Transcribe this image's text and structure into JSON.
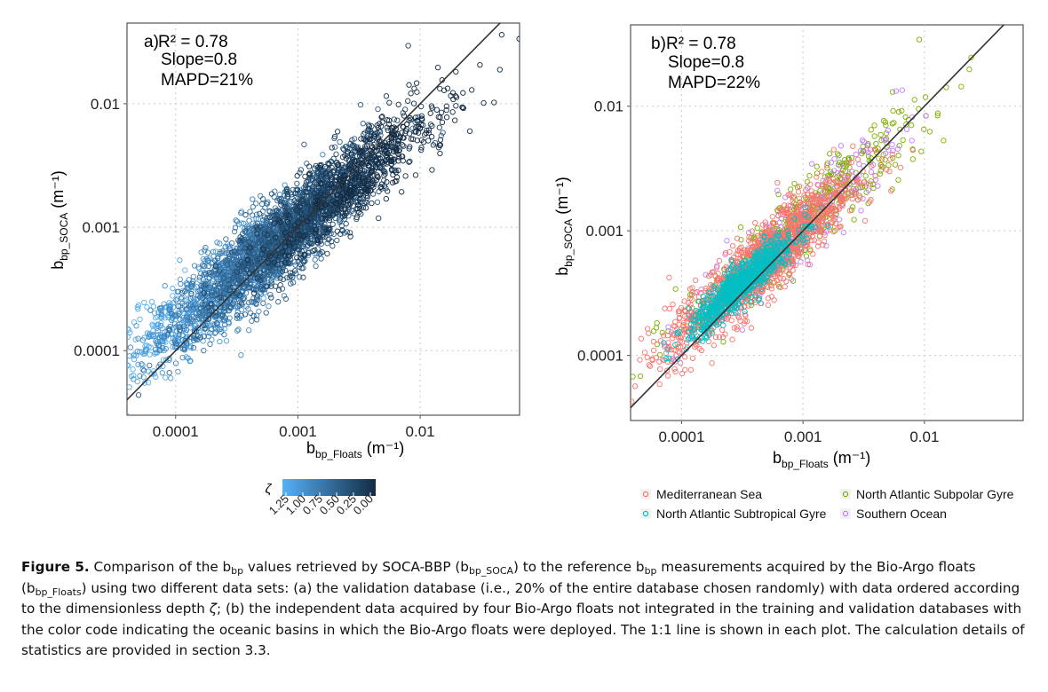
{
  "chart_data": [
    {
      "type": "scatter",
      "panel": "a",
      "annotation": {
        "panel_label": "a)",
        "r2": "R² = 0.78",
        "slope": "Slope=0.8",
        "mapd": "MAPD=21%"
      },
      "x_scale": "log10",
      "y_scale": "log10",
      "xlim": [
        4e-05,
        0.065
      ],
      "ylim": [
        3e-05,
        0.045
      ],
      "xticks": [
        "0.0001",
        "0.001",
        "0.01"
      ],
      "yticks": [
        "0.0001",
        "0.001",
        "0.01"
      ],
      "xlabel": {
        "base": "b",
        "sub": "bp_Floats",
        "unit": "(m⁻¹)"
      },
      "ylabel": {
        "base": "b",
        "sub": "bp_SOCA",
        "unit": "(m⁻¹)"
      },
      "grid": true,
      "reference_line": "1:1",
      "color_variable": {
        "symbol": "ζ",
        "ticks": [
          "1.25",
          "1.00",
          "0.75",
          "0.50",
          "0.25",
          "0.00"
        ],
        "low_color": "#56B1F7",
        "high_color": "#132B43"
      },
      "point_cloud": {
        "center_log10": -3.15,
        "spread_log10": 0.55,
        "scatter_log10": 0.17,
        "slope": 0.8,
        "n_points": 3800
      }
    },
    {
      "type": "scatter",
      "panel": "b",
      "annotation": {
        "panel_label": "b)",
        "r2": "R² = 0.78",
        "slope": "Slope=0.8",
        "mapd": "MAPD=22%"
      },
      "x_scale": "log10",
      "y_scale": "log10",
      "xlim": [
        3.8e-05,
        0.065
      ],
      "ylim": [
        3e-05,
        0.045
      ],
      "xticks": [
        "0.0001",
        "0.001",
        "0.01"
      ],
      "yticks": [
        "0.0001",
        "0.001",
        "0.01"
      ],
      "xlabel": {
        "base": "b",
        "sub": "bp_Floats",
        "unit": "(m⁻¹)"
      },
      "ylabel": {
        "base": "b",
        "sub": "bp_SOCA",
        "unit": "(m⁻¹)"
      },
      "grid": true,
      "reference_line": "1:1",
      "series": [
        {
          "name": "Mediterranean Sea",
          "color": "#F8766D",
          "center_log10": -3.35,
          "spread_log10": 0.38,
          "scatter_log10": 0.15,
          "n_points": 1300
        },
        {
          "name": "North Atlantic Subpolar Gyre",
          "color": "#7CAE00",
          "center_log10": -3.0,
          "spread_log10": 0.5,
          "scatter_log10": 0.15,
          "n_points": 450
        },
        {
          "name": "North Atlantic Subtropical Gyre",
          "color": "#00BFC4",
          "center_log10": -3.5,
          "spread_log10": 0.22,
          "scatter_log10": 0.08,
          "n_points": 750
        },
        {
          "name": "Southern Ocean",
          "color": "#C77CFF",
          "center_log10": -3.1,
          "spread_log10": 0.45,
          "scatter_log10": 0.17,
          "n_points": 220
        }
      ],
      "legend_placement": "bottom"
    }
  ],
  "caption": {
    "label": "Figure 5.",
    "parts": [
      " Comparison of the b",
      "bp",
      " values retrieved by SOCA-BBP (b",
      "bp_SOCA",
      ") to the reference b",
      "bp",
      " measurements acquired by the Bio-Argo floats (b",
      "bp_Floats",
      ") using two different data sets: (a) the validation database (i.e., 20% of the entire database chosen randomly) with data ordered according to the dimensionless depth ",
      "ζ",
      "; (b) the independent data acquired by four Bio-Argo floats not integrated in the training and validation databases with the color code indicating the oceanic basins in which the Bio-Argo floats were deployed. The 1:1 line is shown in each plot. The calculation details of statistics are provided in section 3.3."
    ]
  },
  "colors": {
    "panel_border": "#555555",
    "grid": "#c8c8c8",
    "one_to_one": "#333333"
  }
}
